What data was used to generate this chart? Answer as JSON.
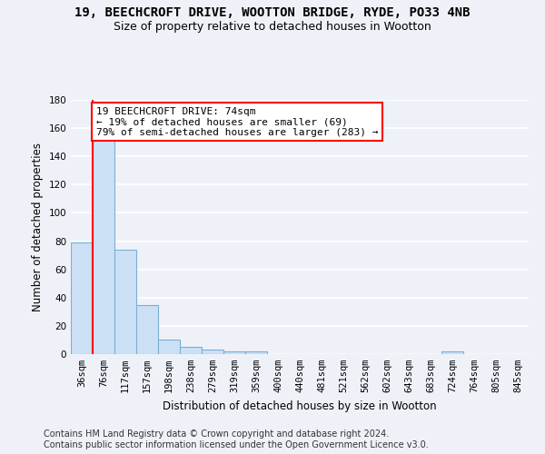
{
  "title_line1": "19, BEECHCROFT DRIVE, WOOTTON BRIDGE, RYDE, PO33 4NB",
  "title_line2": "Size of property relative to detached houses in Wootton",
  "xlabel": "Distribution of detached houses by size in Wootton",
  "ylabel": "Number of detached properties",
  "bin_labels": [
    "36sqm",
    "76sqm",
    "117sqm",
    "157sqm",
    "198sqm",
    "238sqm",
    "279sqm",
    "319sqm",
    "359sqm",
    "400sqm",
    "440sqm",
    "481sqm",
    "521sqm",
    "562sqm",
    "602sqm",
    "643sqm",
    "683sqm",
    "724sqm",
    "764sqm",
    "805sqm",
    "845sqm"
  ],
  "bar_heights": [
    79,
    152,
    74,
    35,
    10,
    5,
    3,
    2,
    2,
    0,
    0,
    0,
    0,
    0,
    0,
    0,
    0,
    2,
    0,
    0,
    0
  ],
  "bar_color": "#cce0f5",
  "bar_edge_color": "#7aafd4",
  "vline_color": "red",
  "vline_bin_index": 1,
  "annotation_text": "19 BEECHCROFT DRIVE: 74sqm\n← 19% of detached houses are smaller (69)\n79% of semi-detached houses are larger (283) →",
  "annotation_box_color": "white",
  "annotation_box_edge_color": "red",
  "ylim": [
    0,
    180
  ],
  "yticks": [
    0,
    20,
    40,
    60,
    80,
    100,
    120,
    140,
    160,
    180
  ],
  "footer_text": "Contains HM Land Registry data © Crown copyright and database right 2024.\nContains public sector information licensed under the Open Government Licence v3.0.",
  "bg_color": "#eef2f8",
  "plot_bg_color": "#eef2f8",
  "grid_color": "#ffffff",
  "title_fontsize": 10,
  "subtitle_fontsize": 9,
  "axis_label_fontsize": 8.5,
  "tick_fontsize": 7.5,
  "annotation_fontsize": 8,
  "footer_fontsize": 7
}
